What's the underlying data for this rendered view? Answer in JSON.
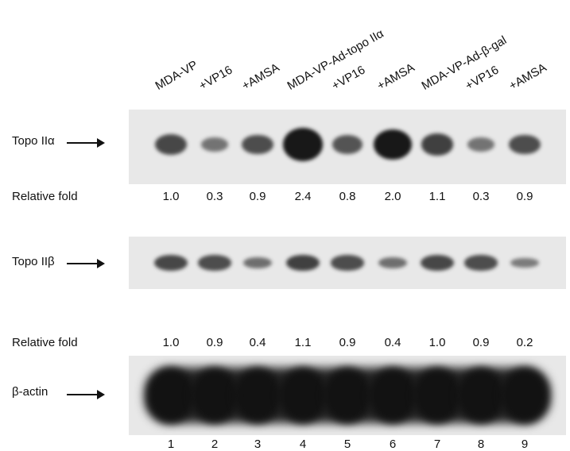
{
  "lanes": [
    {
      "number": "1",
      "label": "MDA-VP"
    },
    {
      "number": "2",
      "label": "+VP16"
    },
    {
      "number": "3",
      "label": "+AMSA"
    },
    {
      "number": "4",
      "label": "MDA-VP-Ad-topo IIα"
    },
    {
      "number": "5",
      "label": "+VP16"
    },
    {
      "number": "6",
      "label": "+AMSA"
    },
    {
      "number": "7",
      "label": "MDA-VP-Ad-β-gal"
    },
    {
      "number": "8",
      "label": "+VP16"
    },
    {
      "number": "9",
      "label": "+AMSA"
    }
  ],
  "blots": [
    {
      "label": "Topo IIα",
      "band_intensity": [
        1.0,
        0.3,
        0.9,
        2.4,
        0.8,
        2.0,
        1.1,
        0.3,
        0.9
      ]
    },
    {
      "label": "Topo IIβ",
      "band_intensity": [
        1.0,
        0.9,
        0.4,
        1.1,
        0.9,
        0.4,
        1.0,
        0.9,
        0.2
      ]
    },
    {
      "label": "β-actin",
      "band_intensity": [
        1,
        1,
        1,
        1,
        1,
        1,
        1,
        1,
        1
      ]
    }
  ],
  "relative_fold": [
    {
      "label": "Relative fold",
      "values": [
        "1.0",
        "0.3",
        "0.9",
        "2.4",
        "0.8",
        "2.0",
        "1.1",
        "0.3",
        "0.9"
      ]
    },
    {
      "label": "Relative fold",
      "values": [
        "1.0",
        "0.9",
        "0.4",
        "1.1",
        "0.9",
        "0.4",
        "1.0",
        "0.9",
        "0.2"
      ]
    }
  ],
  "colors": {
    "band": "#111111",
    "panel": "#e8e8e8"
  }
}
